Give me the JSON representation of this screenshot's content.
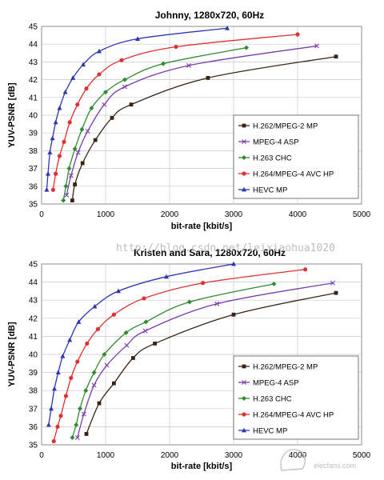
{
  "watermark": {
    "text": "http://blog.csdn.net/leixiaohua1020",
    "logo": "elecfans.com"
  },
  "chart_data": [
    {
      "type": "line",
      "title": "Johnny, 1280x720, 60Hz",
      "xlabel": "bit-rate [kbit/s]",
      "ylabel": "YUV-PSNR [dB]",
      "xlim": [
        0,
        5000
      ],
      "ylim": [
        35,
        45
      ],
      "xticks": [
        0,
        1000,
        2000,
        3000,
        4000,
        5000
      ],
      "yticks": [
        35,
        36,
        37,
        38,
        39,
        40,
        41,
        42,
        43,
        44,
        45
      ],
      "grid": true,
      "legend": "bottom-right",
      "series": [
        {
          "name": "H.262/MPEG-2 MP",
          "color": "#3a2414",
          "marker": "square",
          "points": [
            [
              480,
              35.2
            ],
            [
              520,
              36.1
            ],
            [
              640,
              37.3
            ],
            [
              840,
              38.6
            ],
            [
              1100,
              39.85
            ],
            [
              1400,
              40.6
            ],
            [
              2600,
              42.1
            ],
            [
              4600,
              43.3
            ]
          ]
        },
        {
          "name": "MPEG-4 ASP",
          "color": "#7a3bb0",
          "marker": "x",
          "points": [
            [
              390,
              35.5
            ],
            [
              460,
              36.6
            ],
            [
              570,
              37.9
            ],
            [
              720,
              39.1
            ],
            [
              980,
              40.6
            ],
            [
              1300,
              41.6
            ],
            [
              2300,
              42.8
            ],
            [
              4300,
              43.9
            ]
          ]
        },
        {
          "name": "H.263 CHC",
          "color": "#2e8b2e",
          "marker": "diamond",
          "points": [
            [
              340,
              35.2
            ],
            [
              380,
              36.0
            ],
            [
              430,
              37.0
            ],
            [
              520,
              38.1
            ],
            [
              630,
              39.2
            ],
            [
              780,
              40.4
            ],
            [
              1000,
              41.3
            ],
            [
              1300,
              42.0
            ],
            [
              1900,
              42.9
            ],
            [
              3200,
              43.8
            ]
          ]
        },
        {
          "name": "H.264/MPEG-4 AVC HP",
          "color": "#e03030",
          "marker": "circle",
          "points": [
            [
              180,
              35.8
            ],
            [
              220,
              36.7
            ],
            [
              280,
              37.7
            ],
            [
              350,
              38.5
            ],
            [
              440,
              39.6
            ],
            [
              560,
              40.6
            ],
            [
              700,
              41.5
            ],
            [
              900,
              42.3
            ],
            [
              1250,
              43.1
            ],
            [
              2100,
              43.85
            ],
            [
              4000,
              44.55
            ]
          ]
        },
        {
          "name": "HEVC MP",
          "color": "#2d35b5",
          "marker": "triangle",
          "points": [
            [
              80,
              35.8
            ],
            [
              100,
              36.7
            ],
            [
              130,
              37.9
            ],
            [
              170,
              38.7
            ],
            [
              220,
              39.6
            ],
            [
              280,
              40.4
            ],
            [
              370,
              41.3
            ],
            [
              490,
              42.1
            ],
            [
              650,
              42.85
            ],
            [
              900,
              43.6
            ],
            [
              1500,
              44.3
            ],
            [
              2900,
              44.9
            ]
          ]
        }
      ]
    },
    {
      "type": "line",
      "title": "Kristen and Sara, 1280x720, 60Hz",
      "xlabel": "bit-rate [kbit/s]",
      "ylabel": "YUV-PSNR [dB]",
      "xlim": [
        0,
        5000
      ],
      "ylim": [
        35,
        45
      ],
      "xticks": [
        0,
        1000,
        2000,
        3000,
        4000,
        5000
      ],
      "yticks": [
        35,
        36,
        37,
        38,
        39,
        40,
        41,
        42,
        43,
        44,
        45
      ],
      "grid": true,
      "legend": "bottom-right",
      "series": [
        {
          "name": "H.262/MPEG-2 MP",
          "color": "#3a2414",
          "marker": "square",
          "points": [
            [
              700,
              35.6
            ],
            [
              900,
              37.3
            ],
            [
              1130,
              38.4
            ],
            [
              1430,
              39.8
            ],
            [
              1770,
              40.6
            ],
            [
              3000,
              42.2
            ],
            [
              4600,
              43.4
            ]
          ]
        },
        {
          "name": "MPEG-4 ASP",
          "color": "#7a3bb0",
          "marker": "x",
          "points": [
            [
              560,
              35.4
            ],
            [
              660,
              36.7
            ],
            [
              820,
              38.3
            ],
            [
              1020,
              39.4
            ],
            [
              1330,
              40.5
            ],
            [
              1620,
              41.3
            ],
            [
              2740,
              42.8
            ],
            [
              4550,
              43.95
            ]
          ]
        },
        {
          "name": "H.263 CHC",
          "color": "#2e8b2e",
          "marker": "diamond",
          "points": [
            [
              480,
              35.4
            ],
            [
              540,
              36.1
            ],
            [
              600,
              37.0
            ],
            [
              690,
              38.0
            ],
            [
              820,
              39.0
            ],
            [
              980,
              40.0
            ],
            [
              1320,
              41.2
            ],
            [
              1630,
              41.8
            ],
            [
              2310,
              42.9
            ],
            [
              3630,
              43.9
            ]
          ]
        },
        {
          "name": "H.264/MPEG-4 AVC HP",
          "color": "#e03030",
          "marker": "circle",
          "points": [
            [
              190,
              35.2
            ],
            [
              250,
              36.0
            ],
            [
              300,
              36.6
            ],
            [
              380,
              37.7
            ],
            [
              460,
              38.7
            ],
            [
              560,
              39.6
            ],
            [
              710,
              40.6
            ],
            [
              880,
              41.4
            ],
            [
              1130,
              42.2
            ],
            [
              1600,
              43.1
            ],
            [
              2520,
              43.95
            ],
            [
              4120,
              44.7
            ]
          ]
        },
        {
          "name": "HEVC MP",
          "color": "#2d35b5",
          "marker": "triangle",
          "points": [
            [
              110,
              36.1
            ],
            [
              150,
              37.0
            ],
            [
              200,
              38.1
            ],
            [
              260,
              39.0
            ],
            [
              330,
              39.9
            ],
            [
              440,
              40.8
            ],
            [
              580,
              41.8
            ],
            [
              830,
              42.65
            ],
            [
              1200,
              43.5
            ],
            [
              1950,
              44.3
            ],
            [
              3000,
              45.0
            ]
          ]
        }
      ]
    }
  ]
}
